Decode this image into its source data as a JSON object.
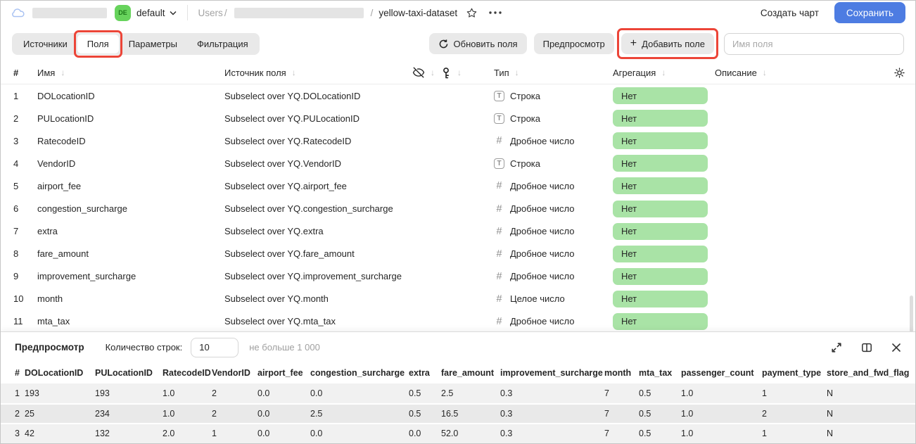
{
  "header": {
    "env_badge": "DE",
    "env_name": "default",
    "breadcrumb": {
      "root": "Users",
      "separator": "/",
      "dataset_name": "yellow-taxi-dataset"
    },
    "create_chart_label": "Создать чарт",
    "save_label": "Сохранить"
  },
  "tabs": [
    {
      "label": "Источники",
      "active": false
    },
    {
      "label": "Поля",
      "active": true,
      "annotated": true
    },
    {
      "label": "Параметры",
      "active": false
    },
    {
      "label": "Фильтрация",
      "active": false
    }
  ],
  "toolbar": {
    "refresh_label": "Обновить поля",
    "preview_label": "Предпросмотр",
    "add_field_label": "Добавить поле",
    "field_name_placeholder": "Имя поля"
  },
  "fields_table": {
    "columns": {
      "num": "#",
      "name": "Имя",
      "source": "Источник поля",
      "type": "Тип",
      "aggregation": "Агрегация",
      "description": "Описание"
    },
    "rows": [
      {
        "num": "1",
        "name": "DOLocationID",
        "source": "Subselect over YQ.DOLocationID",
        "type_kind": "string",
        "type_label": "Строка",
        "aggregation": "Нет",
        "description": ""
      },
      {
        "num": "2",
        "name": "PULocationID",
        "source": "Subselect over YQ.PULocationID",
        "type_kind": "string",
        "type_label": "Строка",
        "aggregation": "Нет",
        "description": ""
      },
      {
        "num": "3",
        "name": "RatecodeID",
        "source": "Subselect over YQ.RatecodeID",
        "type_kind": "float",
        "type_label": "Дробное число",
        "aggregation": "Нет",
        "description": ""
      },
      {
        "num": "4",
        "name": "VendorID",
        "source": "Subselect over YQ.VendorID",
        "type_kind": "string",
        "type_label": "Строка",
        "aggregation": "Нет",
        "description": ""
      },
      {
        "num": "5",
        "name": "airport_fee",
        "source": "Subselect over YQ.airport_fee",
        "type_kind": "float",
        "type_label": "Дробное число",
        "aggregation": "Нет",
        "description": ""
      },
      {
        "num": "6",
        "name": "congestion_surcharge",
        "source": "Subselect over YQ.congestion_surcharge",
        "type_kind": "float",
        "type_label": "Дробное число",
        "aggregation": "Нет",
        "description": ""
      },
      {
        "num": "7",
        "name": "extra",
        "source": "Subselect over YQ.extra",
        "type_kind": "float",
        "type_label": "Дробное число",
        "aggregation": "Нет",
        "description": ""
      },
      {
        "num": "8",
        "name": "fare_amount",
        "source": "Subselect over YQ.fare_amount",
        "type_kind": "float",
        "type_label": "Дробное число",
        "aggregation": "Нет",
        "description": ""
      },
      {
        "num": "9",
        "name": "improvement_surcharge",
        "source": "Subselect over YQ.improvement_surcharge",
        "type_kind": "float",
        "type_label": "Дробное число",
        "aggregation": "Нет",
        "description": ""
      },
      {
        "num": "10",
        "name": "month",
        "source": "Subselect over YQ.month",
        "type_kind": "integer",
        "type_label": "Целое число",
        "aggregation": "Нет",
        "description": ""
      },
      {
        "num": "11",
        "name": "mta_tax",
        "source": "Subselect over YQ.mta_tax",
        "type_kind": "float",
        "type_label": "Дробное число",
        "aggregation": "Нет",
        "description": ""
      }
    ]
  },
  "preview": {
    "title": "Предпросмотр",
    "row_count_label": "Количество строк:",
    "row_count_value": "10",
    "row_count_hint": "не больше 1 000",
    "table": {
      "columns": [
        "#",
        "DOLocationID",
        "PULocationID",
        "RatecodeID",
        "VendorID",
        "airport_fee",
        "congestion_surcharge",
        "extra",
        "fare_amount",
        "improvement_surcharge",
        "month",
        "mta_tax",
        "passenger_count",
        "payment_type",
        "store_and_fwd_flag"
      ],
      "rows": [
        [
          "1",
          "193",
          "193",
          "1.0",
          "2",
          "0.0",
          "0.0",
          "0.5",
          "2.5",
          "0.3",
          "7",
          "0.5",
          "1.0",
          "1",
          "N"
        ],
        [
          "2",
          "25",
          "234",
          "1.0",
          "2",
          "0.0",
          "2.5",
          "0.5",
          "16.5",
          "0.3",
          "7",
          "0.5",
          "1.0",
          "2",
          "N"
        ],
        [
          "3",
          "42",
          "132",
          "2.0",
          "1",
          "0.0",
          "0.0",
          "0.0",
          "52.0",
          "0.3",
          "7",
          "0.5",
          "1.0",
          "1",
          "N"
        ]
      ]
    }
  },
  "colors": {
    "accent_blue": "#4d7ce2",
    "env_badge_green": "#67d35c",
    "aggregation_green": "#a9e3a6",
    "annotation_red": "#ec4538"
  }
}
